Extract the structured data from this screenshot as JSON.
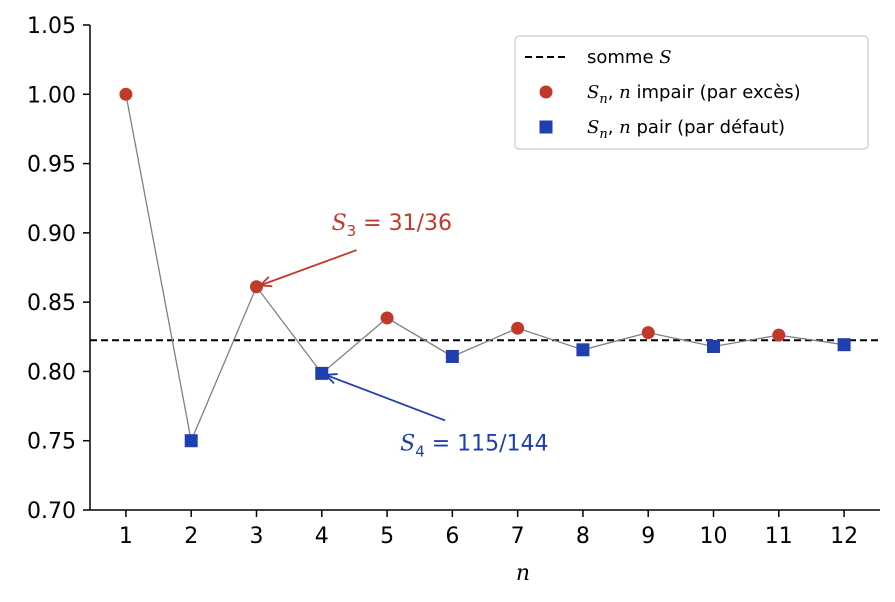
{
  "chart_data": {
    "type": "scatter",
    "title": "",
    "xlabel": "n",
    "ylabel": "",
    "xlim": [
      0.45,
      12.55
    ],
    "ylim": [
      0.7,
      1.05
    ],
    "x_ticks": [
      1,
      2,
      3,
      4,
      5,
      6,
      7,
      8,
      9,
      10,
      11,
      12
    ],
    "y_ticks": [
      "0.70",
      "0.75",
      "0.80",
      "0.85",
      "0.90",
      "0.95",
      "1.00",
      "1.05"
    ],
    "grid": false,
    "legend_position": "top-right",
    "sum_line": {
      "y": 0.8225,
      "legend": "somme S",
      "color": "#000000",
      "style": "dashed"
    },
    "connecting_line": {
      "color": "#808080",
      "x": [
        1,
        2,
        3,
        4,
        5,
        6,
        7,
        8,
        9,
        10,
        11,
        12
      ],
      "y": [
        1.0,
        0.75,
        0.8611,
        0.7986,
        0.8386,
        0.8108,
        0.8312,
        0.8156,
        0.828,
        0.818,
        0.8262,
        0.8193
      ]
    },
    "series": [
      {
        "name": "S_n, n impair (par excès)",
        "legend_parts": [
          "S",
          "n",
          ", ",
          "n",
          " impair (par excès)"
        ],
        "marker": "circle",
        "color": "#c0392b",
        "x": [
          1,
          3,
          5,
          7,
          9,
          11
        ],
        "y": [
          1.0,
          0.8611,
          0.8386,
          0.8312,
          0.828,
          0.8262
        ]
      },
      {
        "name": "S_n, n pair (par défaut)",
        "legend_parts": [
          "S",
          "n",
          ", ",
          "n",
          " pair (par défaut)"
        ],
        "marker": "square",
        "color": "#1f3fb0",
        "x": [
          2,
          4,
          6,
          8,
          10,
          12
        ],
        "y": [
          0.75,
          0.7986,
          0.8108,
          0.8156,
          0.818,
          0.8193
        ]
      }
    ],
    "legend_sum_parts": [
      "somme ",
      "S"
    ],
    "annotations": [
      {
        "sym": "S",
        "sub": "3",
        "rest": " = 31/36",
        "color": "#c0392b",
        "point": [
          3,
          0.8611
        ],
        "text_at": [
          4.15,
          0.902
        ]
      },
      {
        "sym": "S",
        "sub": "4",
        "rest": " = 115/144",
        "color": "#1f3fb0",
        "point": [
          4,
          0.7986
        ],
        "text_at": [
          5.2,
          0.743
        ]
      }
    ]
  }
}
